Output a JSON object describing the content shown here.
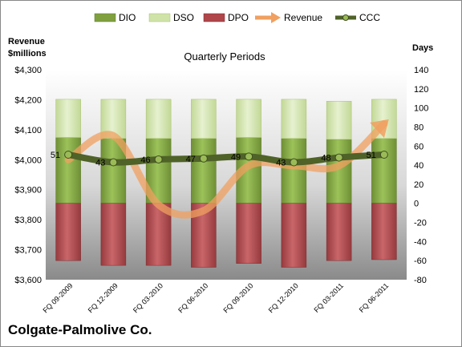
{
  "chart_data": {
    "type": "bar",
    "title": "Quarterly Periods",
    "company": "Colgate-Palmolive Co.",
    "left_axis_label_line1": "Revenue",
    "left_axis_label_line2": "$millions",
    "right_axis_label": "Days",
    "categories": [
      "FQ 09-2009",
      "FQ 12-2009",
      "FQ 03-2010",
      "FQ 06-2010",
      "FQ 09-2010",
      "FQ 12-2010",
      "FQ 03-2011",
      "FQ 06-2011"
    ],
    "legend": [
      "DIO",
      "DSO",
      "DPO",
      "Revenue",
      "CCC"
    ],
    "legend_position": "top",
    "y_left": {
      "min": 3600,
      "max": 4300,
      "step": 100,
      "ticks": [
        "$3,600",
        "$3,700",
        "$3,800",
        "$3,900",
        "$4,000",
        "$4,100",
        "$4,200",
        "$4,300"
      ]
    },
    "y_right": {
      "min": -80,
      "max": 140,
      "step": 20,
      "ticks": [
        "-80",
        "-60",
        "-40",
        "-20",
        "0",
        "20",
        "40",
        "60",
        "80",
        "100",
        "120",
        "140"
      ]
    },
    "series": [
      {
        "name": "DIO",
        "type": "stacked-bar",
        "color": "#80a040",
        "values": [
          69,
          68,
          68,
          68,
          69,
          68,
          67,
          68
        ]
      },
      {
        "name": "DSO",
        "type": "stacked-bar",
        "color": "#cfe3a8",
        "values": [
          40,
          41,
          41,
          41,
          40,
          41,
          40,
          41
        ]
      },
      {
        "name": "DPO",
        "type": "stacked-bar-negative",
        "color": "#b0454a",
        "values": [
          -60,
          -65,
          -65,
          -67,
          -63,
          -67,
          -60,
          -59
        ]
      },
      {
        "name": "Revenue",
        "type": "line",
        "color": "#f0a060",
        "axis": "left",
        "values": [
          4000,
          4080,
          3850,
          3830,
          3980,
          3980,
          3980,
          4120
        ]
      },
      {
        "name": "CCC",
        "type": "line",
        "color": "#4f6228",
        "axis": "right",
        "values": [
          51,
          43,
          46,
          47,
          49,
          43,
          48,
          51
        ],
        "labels": [
          "51",
          "43",
          "46",
          "47",
          "49",
          "43",
          "48",
          "51"
        ]
      }
    ],
    "grid": false
  }
}
